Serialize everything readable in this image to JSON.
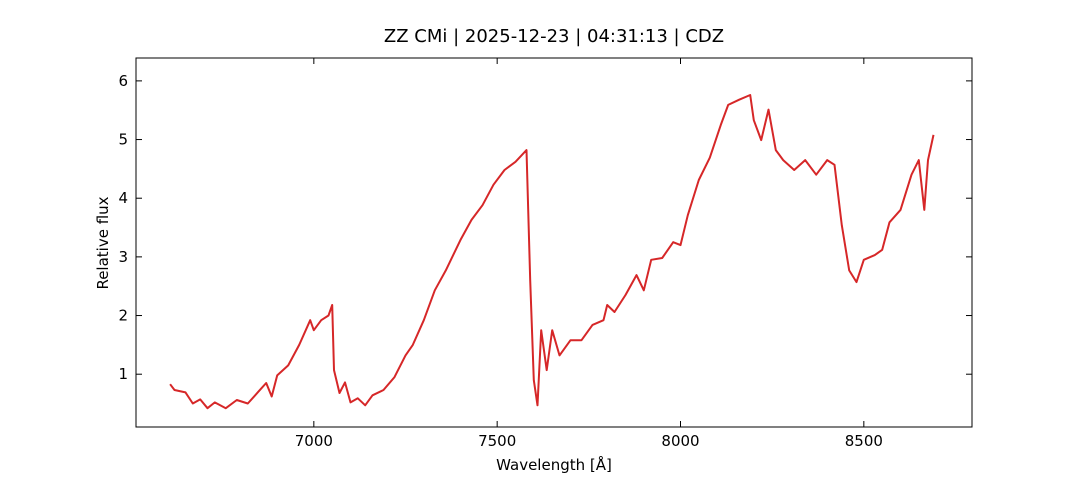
{
  "chart_data": {
    "type": "line",
    "title": "ZZ CMi | 2025-12-23 | 04:31:13 | CDZ",
    "x_label": "Wavelength [Å]",
    "y_label": "Relative flux",
    "x": [
      6608,
      6620,
      6650,
      6670,
      6690,
      6710,
      6730,
      6760,
      6790,
      6820,
      6850,
      6870,
      6885,
      6900,
      6930,
      6960,
      6990,
      7000,
      7020,
      7040,
      7050,
      7055,
      7070,
      7085,
      7100,
      7120,
      7140,
      7160,
      7190,
      7220,
      7250,
      7270,
      7300,
      7330,
      7360,
      7400,
      7430,
      7460,
      7490,
      7520,
      7550,
      7580,
      7590,
      7600,
      7610,
      7620,
      7635,
      7650,
      7670,
      7700,
      7730,
      7760,
      7790,
      7800,
      7820,
      7850,
      7880,
      7900,
      7920,
      7950,
      7980,
      8000,
      8020,
      8050,
      8080,
      8110,
      8130,
      8160,
      8190,
      8200,
      8220,
      8240,
      8260,
      8280,
      8310,
      8340,
      8370,
      8400,
      8420,
      8440,
      8460,
      8480,
      8500,
      8530,
      8550,
      8570,
      8600,
      8630,
      8650,
      8665,
      8675,
      8690
    ],
    "series": [
      {
        "name": "ZZ CMi",
        "color": "#d62728",
        "values": [
          0.83,
          0.73,
          0.69,
          0.5,
          0.57,
          0.42,
          0.52,
          0.42,
          0.56,
          0.5,
          0.71,
          0.85,
          0.62,
          0.98,
          1.15,
          1.5,
          1.92,
          1.75,
          1.92,
          2.0,
          2.18,
          1.07,
          0.68,
          0.86,
          0.52,
          0.59,
          0.47,
          0.64,
          0.73,
          0.95,
          1.32,
          1.5,
          1.92,
          2.43,
          2.77,
          3.29,
          3.63,
          3.88,
          4.23,
          4.48,
          4.62,
          4.82,
          2.6,
          0.9,
          0.47,
          1.75,
          1.07,
          1.75,
          1.32,
          1.58,
          1.58,
          1.84,
          1.92,
          2.18,
          2.06,
          2.35,
          2.69,
          2.43,
          2.95,
          2.98,
          3.25,
          3.2,
          3.71,
          4.31,
          4.69,
          5.25,
          5.59,
          5.68,
          5.76,
          5.33,
          4.99,
          5.51,
          4.82,
          4.65,
          4.48,
          4.65,
          4.4,
          4.65,
          4.57,
          3.54,
          2.77,
          2.57,
          2.95,
          3.03,
          3.12,
          3.59,
          3.8,
          4.4,
          4.65,
          3.8,
          4.65,
          5.08
        ]
      }
    ],
    "xlim": [
      6515,
      8795
    ],
    "ylim": [
      0.1,
      6.39
    ],
    "xticks": [
      7000,
      7500,
      8000,
      8500
    ],
    "yticks": [
      1,
      2,
      3,
      4,
      5,
      6
    ],
    "grid": false
  }
}
